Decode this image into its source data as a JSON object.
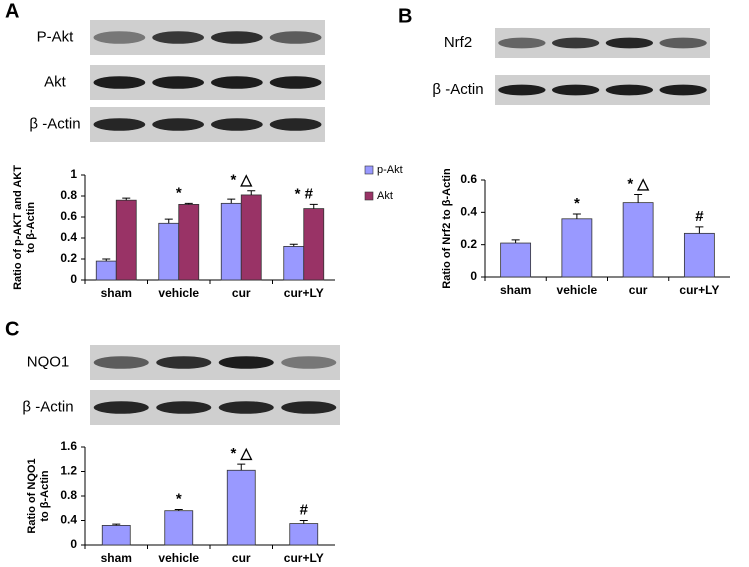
{
  "chart_data": [
    {
      "type": "bar",
      "panel": "A",
      "blots": [
        "P-Akt",
        "Akt",
        "β -Actin"
      ],
      "y_label": [
        "Ratio of p-AKT and AKT",
        "to β-Actin"
      ],
      "categories": [
        "sham",
        "vehicle",
        "cur",
        "cur+LY"
      ],
      "series": [
        {
          "name": "p-Akt",
          "color": "#9999ff",
          "values": [
            0.18,
            0.54,
            0.73,
            0.32
          ],
          "errors": [
            0.02,
            0.04,
            0.04,
            0.02
          ]
        },
        {
          "name": "Akt",
          "color": "#993366",
          "values": [
            0.76,
            0.72,
            0.81,
            0.68
          ],
          "errors": [
            0.02,
            0.01,
            0.04,
            0.04
          ]
        }
      ],
      "annotations": [
        null,
        "*",
        "* △",
        "* #"
      ],
      "ylim": [
        0,
        1
      ],
      "yticks": [
        0,
        0.2,
        0.4,
        0.6,
        0.8,
        1
      ]
    },
    {
      "type": "bar",
      "panel": "B",
      "blots": [
        "Nrf2",
        "β -Actin"
      ],
      "y_label": [
        "Ratio of Nrf2  to  β-Actin"
      ],
      "categories": [
        "sham",
        "vehicle",
        "cur",
        "cur+LY"
      ],
      "color": "#9999ff",
      "values": [
        0.21,
        0.36,
        0.46,
        0.27
      ],
      "errors": [
        0.02,
        0.03,
        0.05,
        0.04
      ],
      "annotations": [
        null,
        "*",
        "* △",
        "#"
      ],
      "ylim": [
        0,
        0.6
      ],
      "yticks": [
        0,
        0.2,
        0.4,
        0.6
      ]
    },
    {
      "type": "bar",
      "panel": "C",
      "blots": [
        "NQO1",
        "β -Actin"
      ],
      "y_label": [
        "Ratio of NQO1",
        "to β-Actin"
      ],
      "categories": [
        "sham",
        "vehicle",
        "cur",
        "cur+LY"
      ],
      "color": "#9999ff",
      "values": [
        0.32,
        0.56,
        1.22,
        0.35
      ],
      "errors": [
        0.02,
        0.02,
        0.1,
        0.05
      ],
      "annotations": [
        null,
        "*",
        "* △",
        "#"
      ],
      "ylim": [
        0,
        1.6
      ],
      "yticks": [
        0,
        0.4,
        0.8,
        1.2,
        1.6
      ]
    }
  ]
}
